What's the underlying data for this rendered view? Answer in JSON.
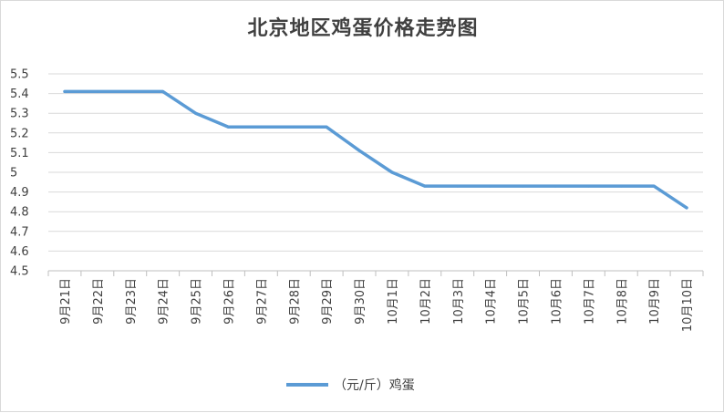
{
  "chart_data": {
    "type": "line",
    "title": "北京地区鸡蛋价格走势图",
    "categories": [
      "9月21日",
      "9月22日",
      "9月23日",
      "9月24日",
      "9月25日",
      "9月26日",
      "9月27日",
      "9月28日",
      "9月29日",
      "9月30日",
      "10月1日",
      "10月2日",
      "10月3日",
      "10月4日",
      "10月5日",
      "10月6日",
      "10月7日",
      "10月8日",
      "10月9日",
      "10月10日"
    ],
    "series": [
      {
        "name": "（元/斤）鸡蛋",
        "values": [
          5.41,
          5.41,
          5.41,
          5.41,
          5.3,
          5.23,
          5.23,
          5.23,
          5.23,
          5.11,
          5.0,
          4.93,
          4.93,
          4.93,
          4.93,
          4.93,
          4.93,
          4.93,
          4.93,
          4.82
        ]
      }
    ],
    "y_ticks": [
      "5.5",
      "5.4",
      "5.3",
      "5.2",
      "5.1",
      "5",
      "4.9",
      "4.8",
      "4.7",
      "4.6",
      "4.5"
    ],
    "ylim": [
      4.5,
      5.5
    ],
    "grid": true,
    "legend_position": "bottom",
    "line_color": "#5b9bd5"
  }
}
